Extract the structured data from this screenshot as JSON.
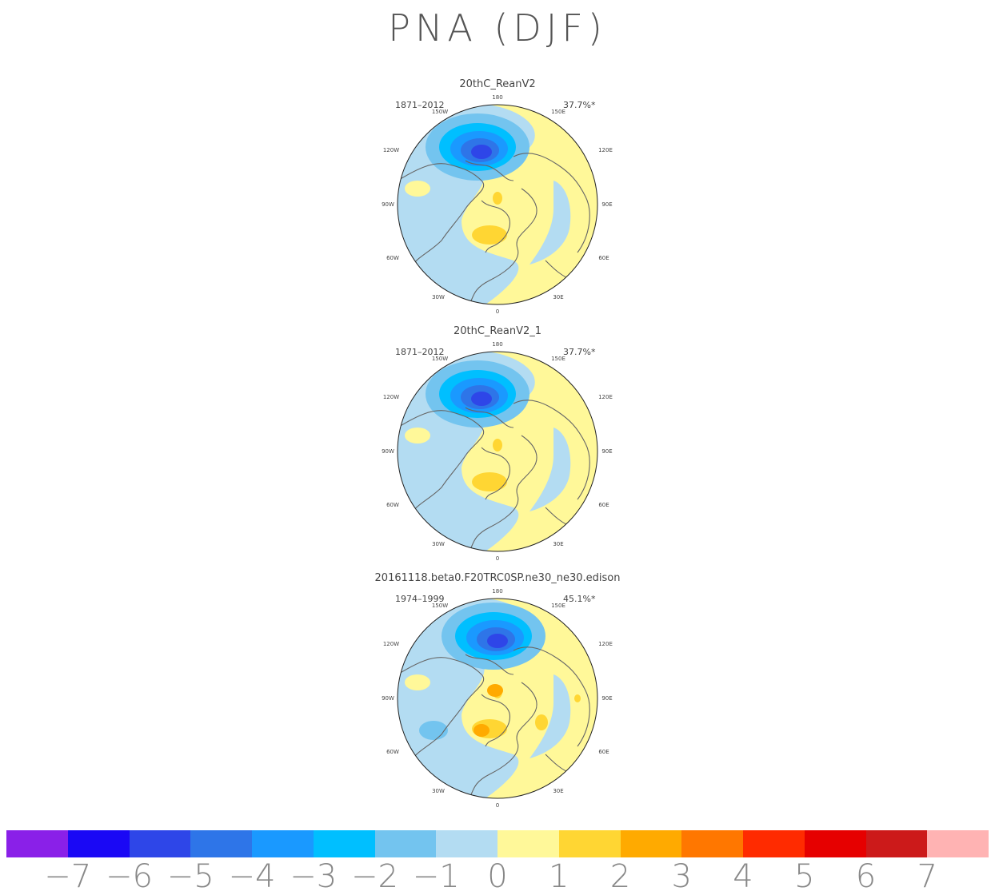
{
  "title": "PNA (DJF)",
  "palette": {
    "ocean_neg1": "#b3dcf2",
    "neg2": "#73c4ef",
    "neg3": "#00bfff",
    "neg4": "#1a99ff",
    "neg5": "#2e75e8",
    "neg6": "#2e46e8",
    "pos1": "#fff899",
    "pos2": "#ffd633",
    "pos3": "#ffaa00",
    "coast": "#666666"
  },
  "panels": [
    {
      "title": "20thC_ReanV2",
      "period": "1871–2012",
      "pct": "37.7%*"
    },
    {
      "title": "20thC_ReanV2_1",
      "period": "1871–2012",
      "pct": "37.7%*"
    },
    {
      "title": "20161118.beta0.F20TRC0SP.ne30_ne30.edison",
      "period": "1974–1999",
      "pct": "45.1%*"
    }
  ],
  "lon_labels": {
    "top": "180",
    "bottom": "0",
    "ul2": "150W",
    "ur2": "150E",
    "ul1": "120W",
    "ur1": "120E",
    "left": "90W",
    "right": "90E",
    "ll1": "60W",
    "lr1": "60E",
    "ll2": "30W",
    "lr2": "30E"
  },
  "chart_data": {
    "type": "heatmap",
    "title": "PNA (DJF)",
    "colorbar": {
      "labels": [
        "−7",
        "−6",
        "−5",
        "−4",
        "−3",
        "−2",
        "−1",
        "0",
        "1",
        "2",
        "3",
        "4",
        "5",
        "6",
        "7"
      ],
      "values": [
        -7,
        -6,
        -5,
        -4,
        -3,
        -2,
        -1,
        0,
        1,
        2,
        3,
        4,
        5,
        6,
        7
      ],
      "colors": [
        "#8a20e8",
        "#1a08f5",
        "#2e46e8",
        "#2e75e8",
        "#1a99ff",
        "#00bfff",
        "#73c4ef",
        "#b3dcf2",
        "#fff899",
        "#ffd633",
        "#ffaa00",
        "#ff7700",
        "#ff2b00",
        "#e60000",
        "#cc1a1a",
        "#ffb3b3"
      ]
    }
  }
}
